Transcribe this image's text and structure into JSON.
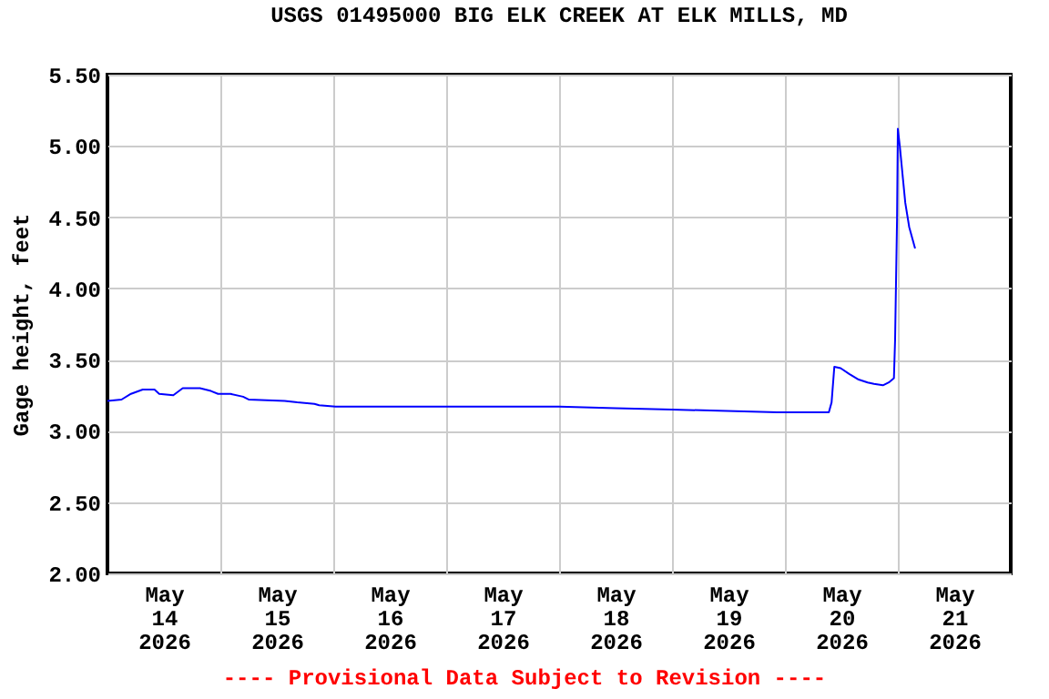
{
  "chart_data": {
    "type": "line",
    "title": "USGS 01495000 BIG ELK CREEK AT ELK MILLS, MD",
    "ylabel": "Gage height, feet",
    "annotations": [
      "---- Provisional Data Subject to Revision ----"
    ],
    "xlim": [
      "2026-05-14T00:00",
      "2026-05-22T00:00"
    ],
    "xticks": [
      {
        "value": "2026-05-14T12:00",
        "label": "May\n14\n2026"
      },
      {
        "value": "2026-05-15T00:00",
        "label": null
      },
      {
        "value": "2026-05-15T12:00",
        "label": "May\n15\n2026"
      },
      {
        "value": "2026-05-16T00:00",
        "label": null
      },
      {
        "value": "2026-05-16T12:00",
        "label": "May\n16\n2026"
      },
      {
        "value": "2026-05-17T00:00",
        "label": null
      },
      {
        "value": "2026-05-17T12:00",
        "label": "May\n17\n2026"
      },
      {
        "value": "2026-05-18T00:00",
        "label": null
      },
      {
        "value": "2026-05-18T12:00",
        "label": "May\n18\n2026"
      },
      {
        "value": "2026-05-19T00:00",
        "label": null
      },
      {
        "value": "2026-05-19T12:00",
        "label": "May\n19\n2026"
      },
      {
        "value": "2026-05-20T00:00",
        "label": null
      },
      {
        "value": "2026-05-20T12:00",
        "label": "May\n20\n2026"
      },
      {
        "value": "2026-05-21T00:00",
        "label": null
      },
      {
        "value": "2026-05-21T12:00",
        "label": "May\n21\n2026"
      }
    ],
    "ylim": [
      2.0,
      5.5
    ],
    "yticks": [
      {
        "value": 2.0,
        "label": "2.00"
      },
      {
        "value": 2.5,
        "label": "2.50"
      },
      {
        "value": 3.0,
        "label": "3.00"
      },
      {
        "value": 3.5,
        "label": "3.50"
      },
      {
        "value": 4.0,
        "label": "4.00"
      },
      {
        "value": 4.5,
        "label": "4.50"
      },
      {
        "value": 5.0,
        "label": "5.00"
      },
      {
        "value": 5.5,
        "label": "5.50"
      }
    ],
    "grid": true,
    "legend": false,
    "marker": "none",
    "line_style": "solid",
    "series": [
      {
        "color": "#0000ff",
        "x": [
          "2026-05-14T00:00",
          "2026-05-14T03:00",
          "2026-05-14T05:00",
          "2026-05-14T07:30",
          "2026-05-14T10:00",
          "2026-05-14T11:00",
          "2026-05-14T14:00",
          "2026-05-14T16:00",
          "2026-05-14T19:40",
          "2026-05-14T22:00",
          "2026-05-14T23:30",
          "2026-05-15T02:10",
          "2026-05-15T04:50",
          "2026-05-15T06:00",
          "2026-05-15T13:40",
          "2026-05-15T16:20",
          "2026-05-15T20:00",
          "2026-05-15T21:00",
          "2026-05-16T00:30",
          "2026-05-17T12:00",
          "2026-05-18T00:00",
          "2026-05-18T12:00",
          "2026-05-19T00:00",
          "2026-05-19T22:20",
          "2026-05-20T09:20",
          "2026-05-20T09:55",
          "2026-05-20T10:30",
          "2026-05-20T11:50",
          "2026-05-20T13:40",
          "2026-05-20T15:40",
          "2026-05-20T17:35",
          "2026-05-20T18:55",
          "2026-05-20T20:50",
          "2026-05-20T22:05",
          "2026-05-20T23:10",
          "2026-05-20T23:25",
          "2026-05-20T23:50",
          "2026-05-21T00:00",
          "2026-05-21T00:25",
          "2026-05-21T01:05",
          "2026-05-21T01:35",
          "2026-05-21T02:25",
          "2026-05-21T03:40"
        ],
        "values": [
          3.21,
          3.22,
          3.26,
          3.29,
          3.29,
          3.26,
          3.25,
          3.3,
          3.3,
          3.28,
          3.26,
          3.26,
          3.24,
          3.22,
          3.21,
          3.2,
          3.19,
          3.18,
          3.17,
          3.17,
          3.17,
          3.16,
          3.15,
          3.13,
          3.13,
          3.2,
          3.45,
          3.44,
          3.4,
          3.36,
          3.34,
          3.33,
          3.32,
          3.34,
          3.37,
          3.64,
          4.49,
          5.12,
          5.0,
          4.77,
          4.6,
          4.43,
          4.28
        ]
      }
    ]
  }
}
